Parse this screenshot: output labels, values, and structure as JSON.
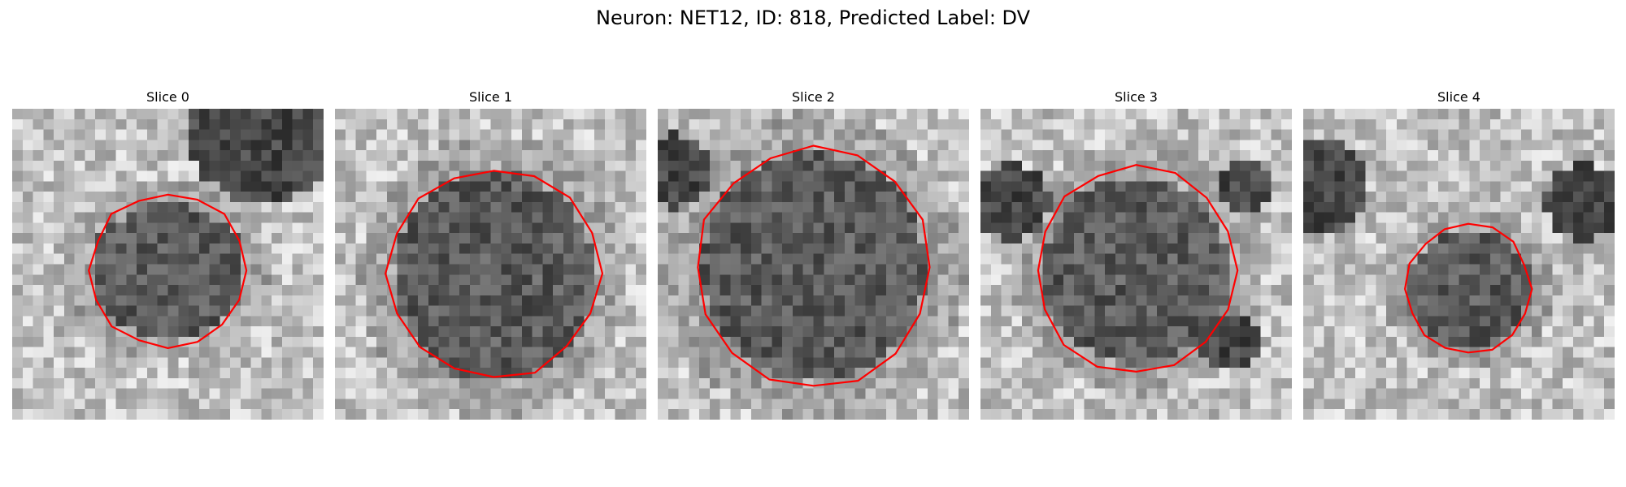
{
  "figure": {
    "title": "Neuron: NET12, ID: 818, Predicted Label: DV",
    "contour_color": "#ff0000"
  },
  "slices": [
    {
      "label": "Slice 0"
    },
    {
      "label": "Slice 1"
    },
    {
      "label": "Slice 2"
    },
    {
      "label": "Slice 3"
    },
    {
      "label": "Slice 4"
    }
  ]
}
